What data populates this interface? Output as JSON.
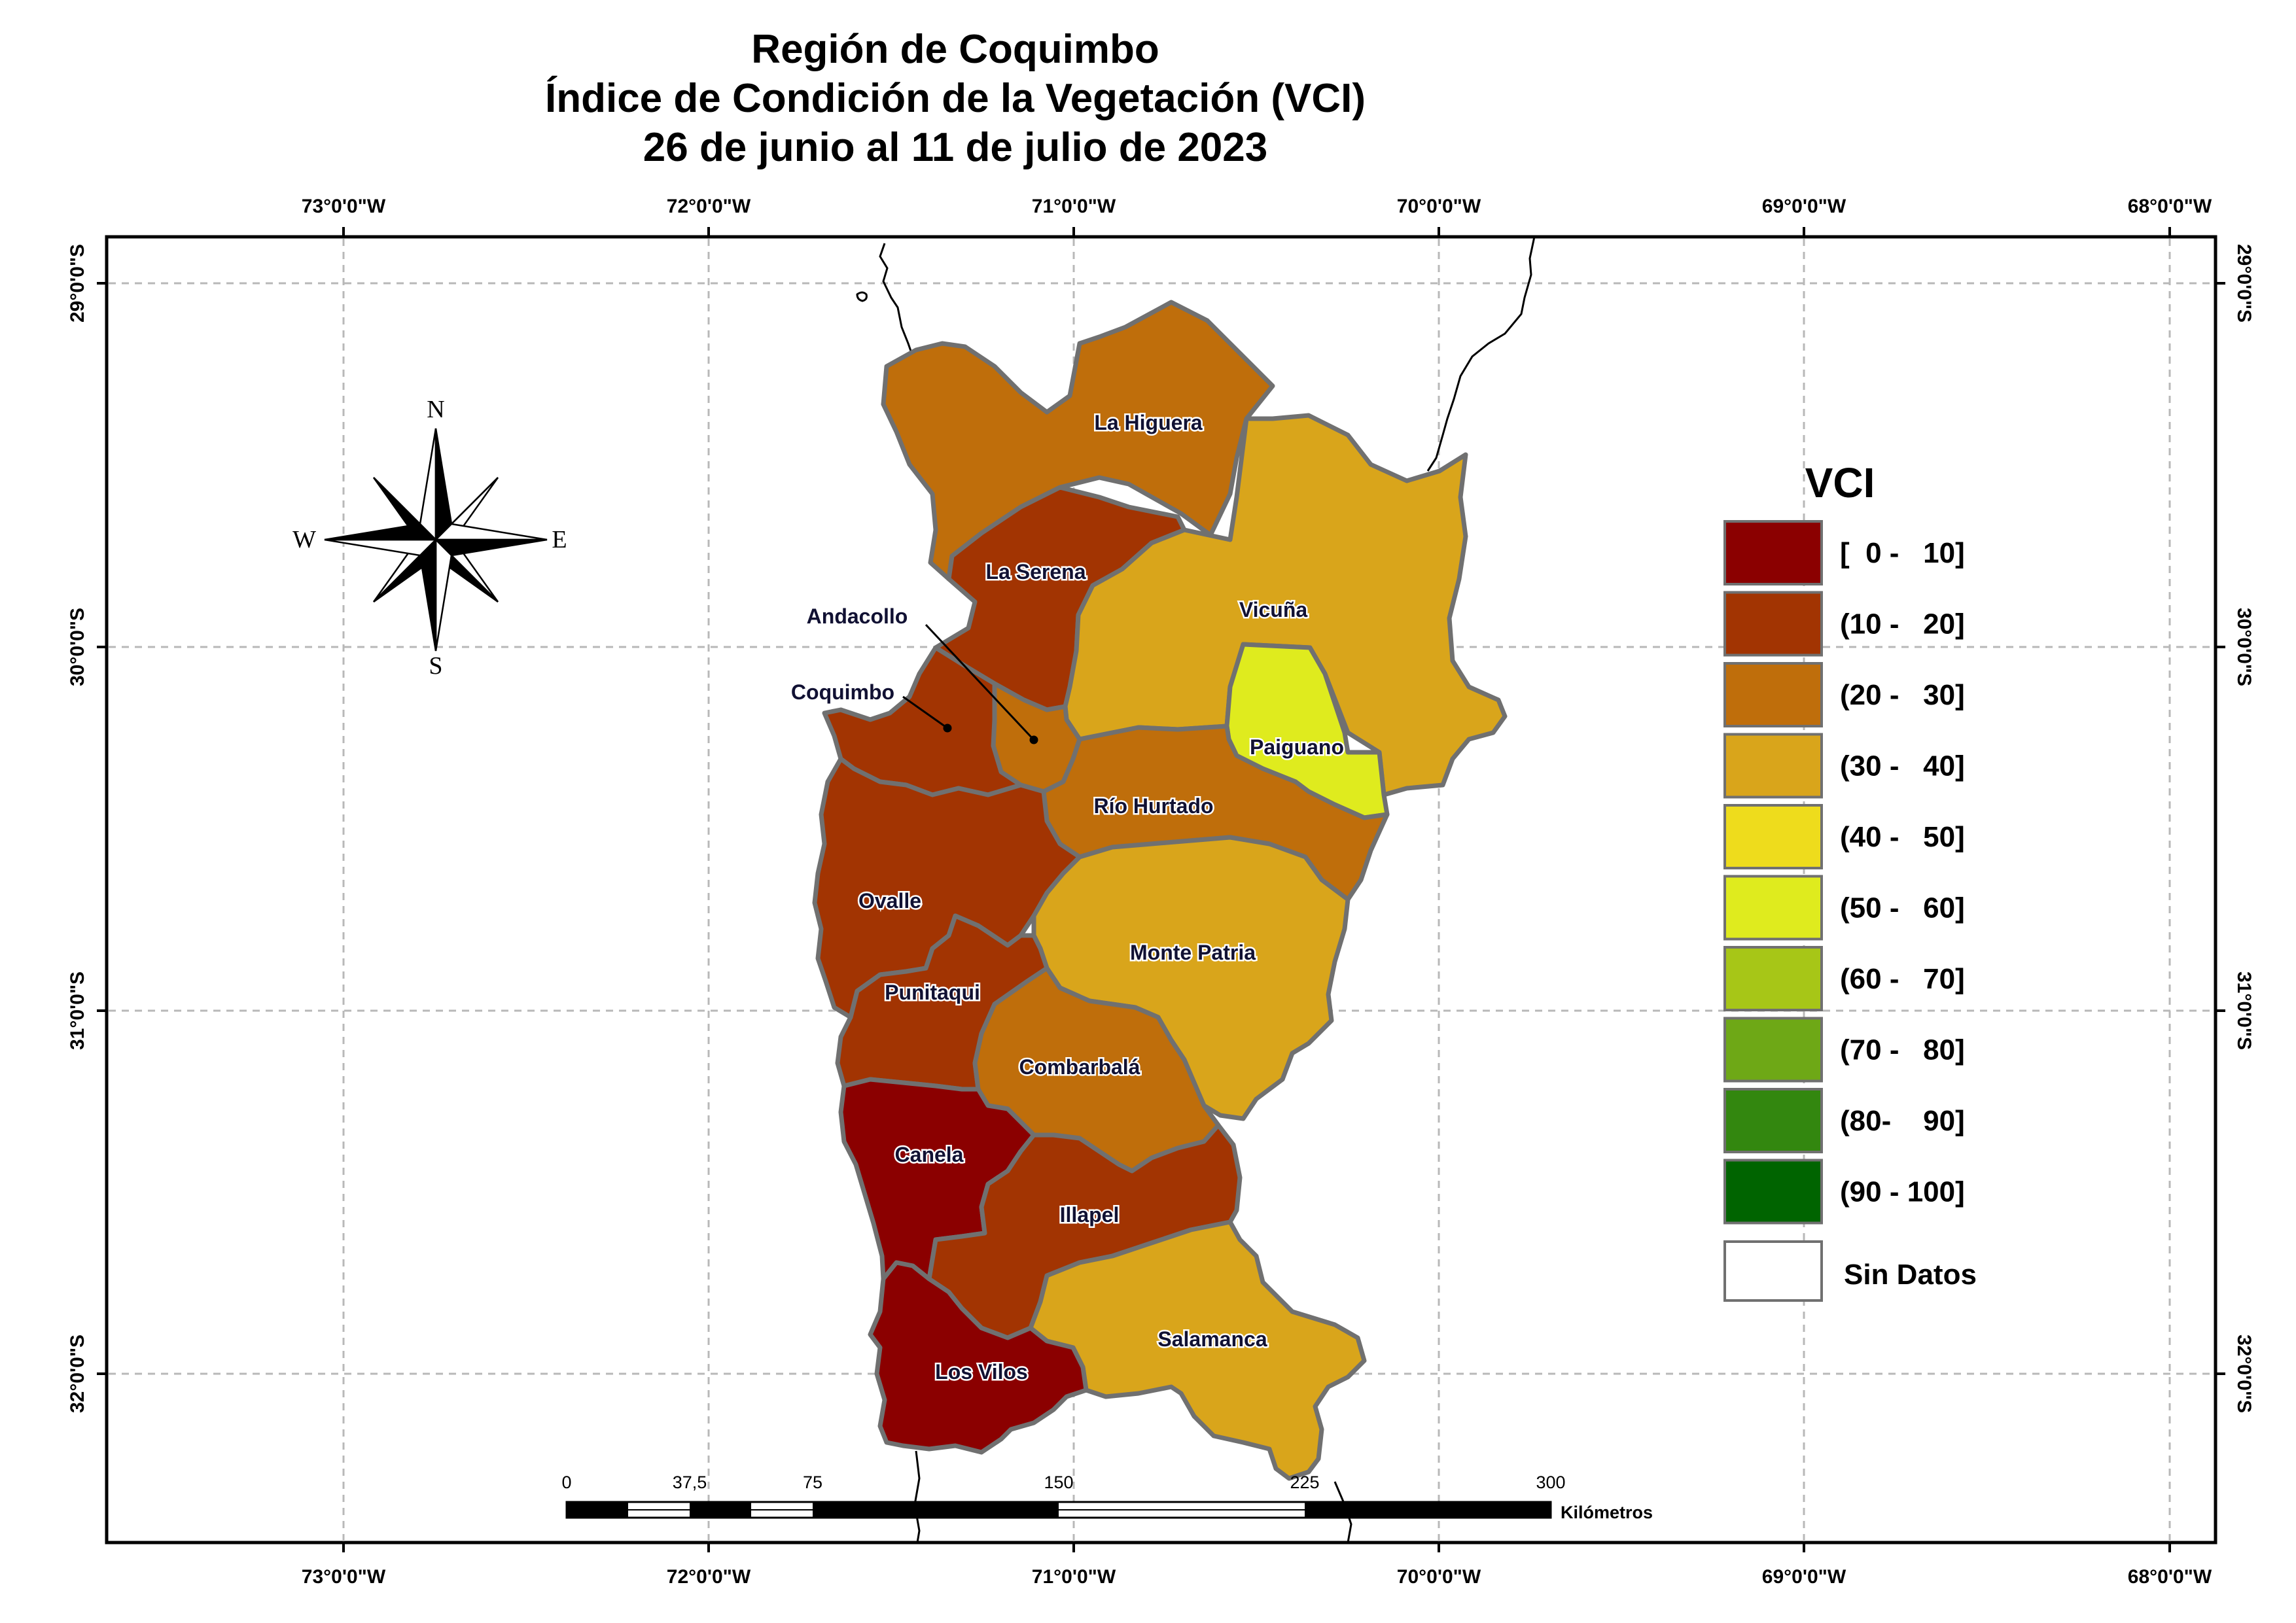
{
  "title": {
    "line1": "Región de Coquimbo",
    "line2": "Índice de Condición de la Vegetación (VCI)",
    "line3": "26 de junio al 11 de julio de 2023"
  },
  "graticule": {
    "lon_labels": [
      "73°0'0\"W",
      "72°0'0\"W",
      "71°0'0\"W",
      "70°0'0\"W",
      "69°0'0\"W",
      "68°0'0\"W"
    ],
    "lat_labels": [
      "29°0'0\"S",
      "30°0'0\"S",
      "31°0'0\"S",
      "32°0'0\"S"
    ]
  },
  "compass": {
    "n": "N",
    "s": "S",
    "e": "E",
    "w": "W"
  },
  "municipalities": [
    {
      "name": "La Higuera",
      "vci_class": "(20 - 30]",
      "color": "#bf6e0b"
    },
    {
      "name": "La Serena",
      "vci_class": "(10 - 20]",
      "color": "#a23402"
    },
    {
      "name": "Vicuña",
      "vci_class": "(30 - 40]",
      "color": "#d9a51b"
    },
    {
      "name": "Paiguano",
      "vci_class": "(50 - 60]",
      "color": "#dfeb1e"
    },
    {
      "name": "Andacollo",
      "vci_class": "(20 - 30]",
      "color": "#bf6e0b"
    },
    {
      "name": "Coquimbo",
      "vci_class": "(10 - 20]",
      "color": "#a23402"
    },
    {
      "name": "Río Hurtado",
      "vci_class": "(20 - 30]",
      "color": "#bf6e0b"
    },
    {
      "name": "Ovalle",
      "vci_class": "(10 - 20]",
      "color": "#a23402"
    },
    {
      "name": "Monte Patria",
      "vci_class": "(30 - 40]",
      "color": "#d9a51b"
    },
    {
      "name": "Punitaqui",
      "vci_class": "(10 - 20]",
      "color": "#a23402"
    },
    {
      "name": "Combarbalá",
      "vci_class": "(20 - 30]",
      "color": "#bf6e0b"
    },
    {
      "name": "Canela",
      "vci_class": "[ 0 - 10]",
      "color": "#8b0000"
    },
    {
      "name": "Illapel",
      "vci_class": "(10 - 20]",
      "color": "#a23402"
    },
    {
      "name": "Salamanca",
      "vci_class": "(30 - 40]",
      "color": "#d9a51b"
    },
    {
      "name": "Los Vilos",
      "vci_class": "[ 0 - 10]",
      "color": "#8b0000"
    }
  ],
  "legend": {
    "title": "VCI",
    "items": [
      {
        "label": "[  0 -   10]",
        "color": "#8b0000"
      },
      {
        "label": "(10 -   20]",
        "color": "#a23402"
      },
      {
        "label": "(20 -   30]",
        "color": "#bf6e0b"
      },
      {
        "label": "(30 -   40]",
        "color": "#d9a51b"
      },
      {
        "label": "(40 -   50]",
        "color": "#eedc1c"
      },
      {
        "label": "(50 -   60]",
        "color": "#dfeb1e"
      },
      {
        "label": "(60 -   70]",
        "color": "#a7c617"
      },
      {
        "label": "(70 -   80]",
        "color": "#6ea816"
      },
      {
        "label": "(80-    90]",
        "color": "#33870f"
      },
      {
        "label": "(90 - 100]",
        "color": "#006400"
      }
    ],
    "no_data": {
      "label": "Sin Datos",
      "color": "#ffffff"
    }
  },
  "scale_bar": {
    "ticks": [
      "0",
      "37,5",
      "75",
      "150",
      "225",
      "300"
    ],
    "unit": "Kilómetros"
  },
  "border_color": "#707070"
}
